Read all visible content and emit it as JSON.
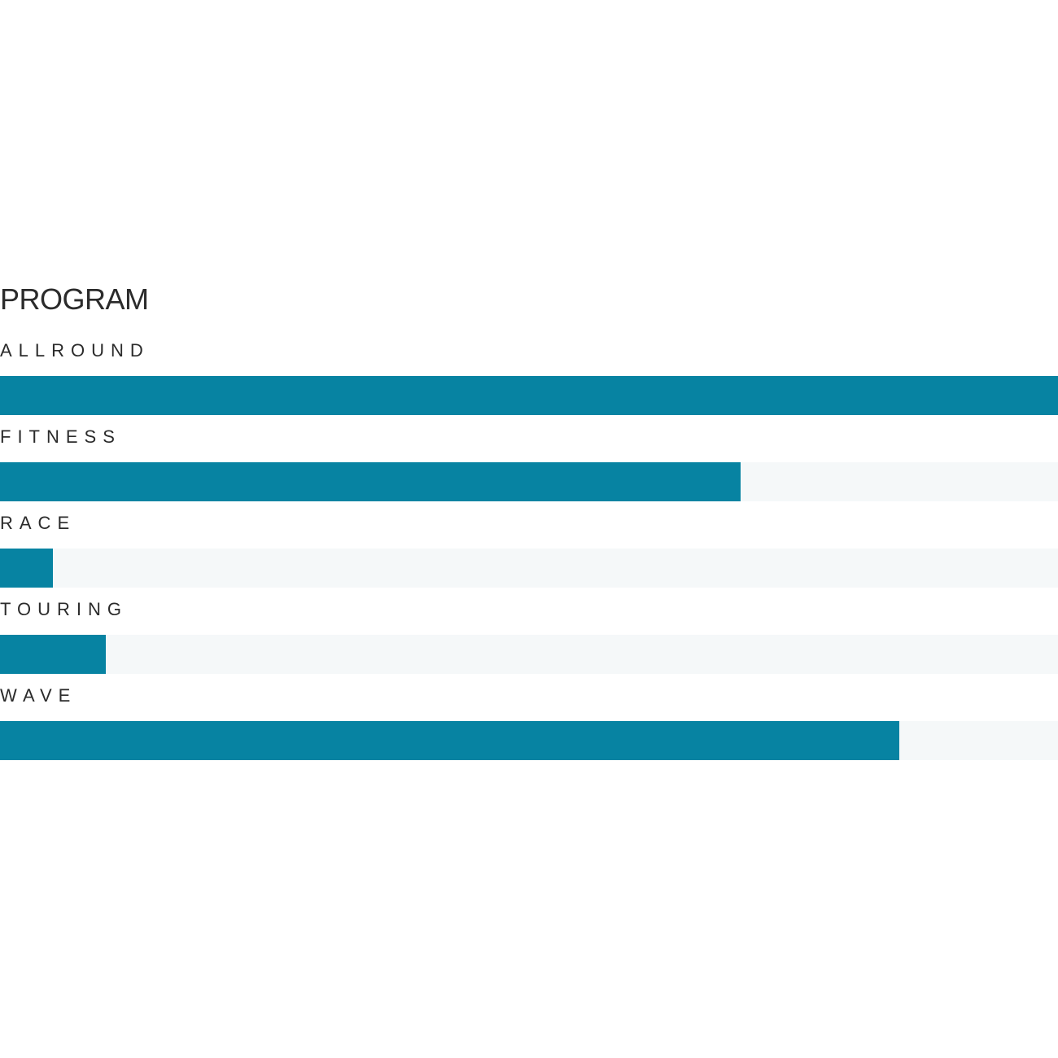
{
  "program": {
    "title": "PROGRAM"
  },
  "chart_data": {
    "type": "bar",
    "orientation": "horizontal",
    "title": "PROGRAM",
    "categories": [
      "ALLROUND",
      "FITNESS",
      "RACE",
      "TOURING",
      "WAVE"
    ],
    "values": [
      100,
      70,
      5,
      10,
      85
    ],
    "xlim": [
      0,
      100
    ],
    "colors": {
      "fill": "#0783a2",
      "track": "#f5f8f9",
      "text": "#2b2b2b"
    }
  }
}
